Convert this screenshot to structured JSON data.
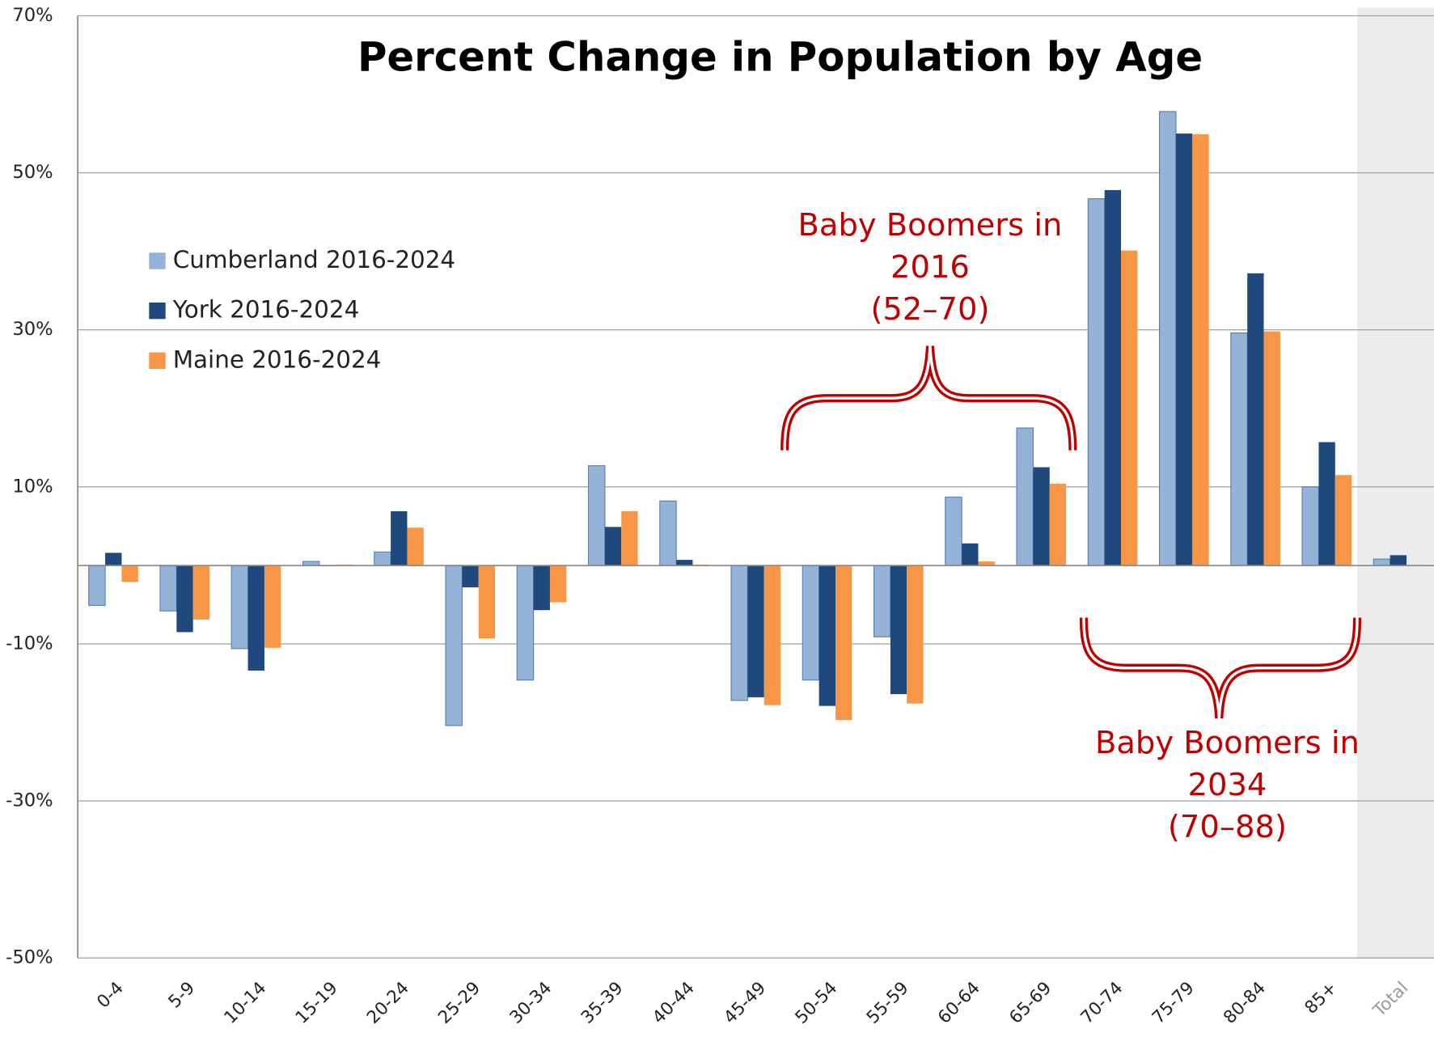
{
  "chart_data": {
    "type": "bar",
    "title": "Percent Change in Population by Age",
    "categories": [
      "0-4",
      "5-9",
      "10-14",
      "15-19",
      "20-24",
      "25-29",
      "30-34",
      "35-39",
      "40-44",
      "45-49",
      "50-54",
      "55-59",
      "60-64",
      "65-69",
      "70-74",
      "75-79",
      "80-84",
      "85+",
      "Total"
    ],
    "series": [
      {
        "name": "Cumberland 2016-2024",
        "color": "#95b3d7",
        "values": [
          -5.1,
          -5.8,
          -10.6,
          0.5,
          1.7,
          -20.4,
          -14.6,
          12.7,
          8.2,
          -17.2,
          -14.6,
          -9.1,
          8.7,
          17.5,
          46.7,
          57.8,
          29.6,
          10.0,
          0.8
        ]
      },
      {
        "name": "York 2016-2024",
        "color": "#1f497d",
        "values": [
          1.6,
          -8.5,
          -13.4,
          -0.1,
          6.9,
          -2.8,
          -5.7,
          4.9,
          0.7,
          -16.8,
          -17.9,
          -16.4,
          2.8,
          12.5,
          47.8,
          55.0,
          37.2,
          15.7,
          1.3
        ]
      },
      {
        "name": "Maine 2016-2024",
        "color": "#f79646",
        "values": [
          -2.1,
          -6.9,
          -10.5,
          0.1,
          4.8,
          -9.3,
          -4.7,
          6.9,
          0.1,
          -17.8,
          -19.7,
          -17.6,
          0.5,
          10.4,
          40.1,
          54.9,
          29.8,
          11.5,
          -0.1
        ]
      }
    ],
    "ylim": [
      -50,
      70
    ],
    "yticks": [
      {
        "value": -50,
        "label": "-50%"
      },
      {
        "value": -30,
        "label": "-30%"
      },
      {
        "value": -10,
        "label": "-10%"
      },
      {
        "value": 10,
        "label": "10%"
      },
      {
        "value": 30,
        "label": "30%"
      },
      {
        "value": 50,
        "label": "50%"
      },
      {
        "value": 70,
        "label": "70%"
      }
    ],
    "grid": true,
    "legend": "left",
    "annotations": [
      {
        "lines": [
          "Baby Boomers in",
          "2016",
          "(52–70)"
        ]
      },
      {
        "lines": [
          "Baby Boomers in",
          "2034",
          "(70–88)"
        ]
      }
    ]
  }
}
